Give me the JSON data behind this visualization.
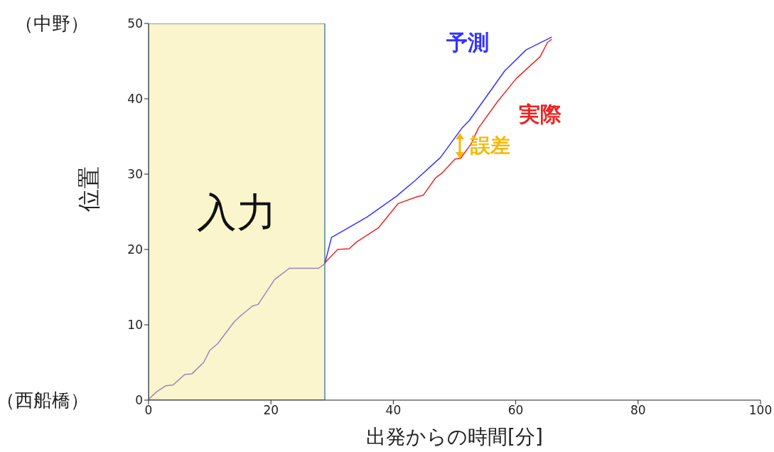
{
  "chart_data": {
    "type": "line",
    "xlabel": "出発からの時間[分]",
    "ylabel": "位置",
    "series": [
      {
        "color": "#9a84c0",
        "x": [
          0,
          1.3,
          2.8,
          4,
          5.9,
          7.1,
          9,
          10,
          11.3,
          14,
          15.2,
          17,
          17.9,
          20.6,
          23,
          27.8,
          28.8
        ],
        "values": [
          0.1,
          1.1,
          1.9,
          2,
          3.4,
          3.5,
          5,
          6.6,
          7.5,
          10.4,
          11.3,
          12.5,
          12.7,
          16,
          17.5,
          17.5,
          18.1
        ]
      },
      {
        "name": "予測",
        "color": "#3333ff",
        "x": [
          28.8,
          29.9,
          35.7,
          40.4,
          43.5,
          47.7,
          51.2,
          52.4,
          58.2,
          61.7,
          65.9
        ],
        "values": [
          18.1,
          21.6,
          24.3,
          27,
          29.1,
          32.2,
          36.1,
          37.1,
          43.7,
          46.5,
          48.2
        ]
      },
      {
        "name": "実際",
        "color": "#ee2222",
        "x": [
          28.8,
          30.9,
          32.8,
          34,
          37.6,
          40.8,
          43.9,
          44.9,
          46.9,
          47.9,
          50.1,
          51,
          52.7,
          53.9,
          57,
          60.1,
          64,
          65.2,
          65.9
        ],
        "values": [
          18.2,
          20,
          20.1,
          21,
          22.9,
          26.1,
          27,
          27.2,
          29.5,
          30.1,
          32,
          32.1,
          34,
          36.1,
          39.6,
          42.7,
          45.6,
          47.5,
          47.9
        ]
      }
    ],
    "xlim": [
      0,
      100
    ],
    "xticks": [
      0,
      20,
      40,
      60,
      80,
      100
    ],
    "ylim": [
      0,
      50
    ],
    "yticks": [
      0,
      10,
      20,
      30,
      40,
      50
    ],
    "bands": [
      {
        "axis": "x",
        "from": 0,
        "to": 28.8,
        "label": "入力",
        "color": "#faf5cc"
      }
    ],
    "annotations": [
      "誤差",
      "（中野）",
      "（西船橋）"
    ]
  }
}
